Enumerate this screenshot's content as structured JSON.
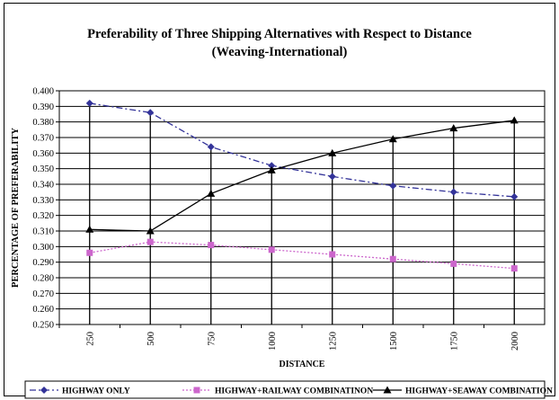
{
  "chart_data": {
    "type": "line",
    "title": "Preferability of Three Shipping Alternatives with Respect to Distance",
    "subtitle": "(Weaving-International)",
    "xlabel": "DISTANCE",
    "ylabel": "PERCENTAGE OF PREFERABILITY",
    "categories": [
      "250",
      "500",
      "750",
      "1000",
      "1250",
      "1500",
      "1750",
      "2000"
    ],
    "ylim": [
      0.25,
      0.4
    ],
    "yticks": [
      "0.250",
      "0.260",
      "0.270",
      "0.280",
      "0.290",
      "0.300",
      "0.310",
      "0.320",
      "0.330",
      "0.340",
      "0.350",
      "0.360",
      "0.370",
      "0.380",
      "0.390",
      "0.400"
    ],
    "grid": "horizontal",
    "legend_position": "bottom",
    "series": [
      {
        "name": "HIGHWAY ONLY",
        "values": [
          0.392,
          0.386,
          0.364,
          0.352,
          0.345,
          0.339,
          0.335,
          0.332
        ],
        "color": "#333399",
        "marker": "diamond",
        "dash": "dash-dot"
      },
      {
        "name": "HIGHWAY+RAILWAY COMBINATINON",
        "values": [
          0.296,
          0.303,
          0.301,
          0.298,
          0.295,
          0.292,
          0.289,
          0.286
        ],
        "color": "#cc66cc",
        "marker": "square",
        "dash": "dotted"
      },
      {
        "name": "HIGHWAY+SEAWAY COMBINATION",
        "values": [
          0.311,
          0.31,
          0.334,
          0.349,
          0.36,
          0.369,
          0.376,
          0.381
        ],
        "color": "#000000",
        "marker": "triangle",
        "dash": "solid"
      }
    ]
  }
}
